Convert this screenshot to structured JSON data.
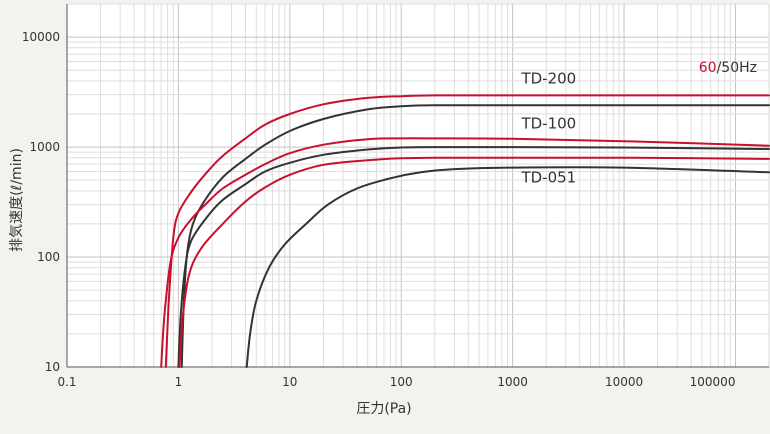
{
  "chart_data": {
    "type": "line",
    "xscale": "log",
    "yscale": "log",
    "xlim": [
      0.1,
      200000
    ],
    "ylim": [
      10,
      20000
    ],
    "grid": true,
    "xlabel": "圧力(Pa)",
    "ylabel": "排気速度(ℓ/min)",
    "xticks": [
      {
        "value": 0.1,
        "label": "0.1"
      },
      {
        "value": 1,
        "label": "1"
      },
      {
        "value": 10,
        "label": "10"
      },
      {
        "value": 100,
        "label": "100"
      },
      {
        "value": 1000,
        "label": "1000"
      },
      {
        "value": 10000,
        "label": "10000"
      },
      {
        "value": 100000,
        "label": "100000"
      }
    ],
    "yticks": [
      {
        "value": 10,
        "label": "10"
      },
      {
        "value": 100,
        "label": "100"
      },
      {
        "value": 1000,
        "label": "1000"
      },
      {
        "value": 10000,
        "label": "10000"
      }
    ],
    "legend": {
      "hz60": "60",
      "rest": "/50Hz",
      "hz60_color": "#c8102e",
      "rest_color": "#333333"
    },
    "colors": {
      "hz60": "#c8102e",
      "hz50": "#333333"
    },
    "annotations": [
      {
        "text": "TD-200",
        "x": 1200,
        "y": 3800
      },
      {
        "text": "TD-100",
        "x": 1200,
        "y": 1480
      },
      {
        "text": "TD-051",
        "x": 1200,
        "y": 475
      }
    ],
    "series": [
      {
        "model": "TD-200",
        "freq": "60Hz",
        "color": "#c8102e",
        "points": [
          [
            0.77,
            10
          ],
          [
            0.82,
            40
          ],
          [
            0.9,
            150
          ],
          [
            1.0,
            250
          ],
          [
            1.3,
            390
          ],
          [
            1.8,
            590
          ],
          [
            2.5,
            830
          ],
          [
            4,
            1200
          ],
          [
            6,
            1600
          ],
          [
            10,
            2000
          ],
          [
            20,
            2450
          ],
          [
            50,
            2800
          ],
          [
            100,
            2900
          ],
          [
            200,
            2950
          ],
          [
            1000,
            2950
          ],
          [
            10000,
            2950
          ],
          [
            200000,
            2950
          ]
        ]
      },
      {
        "model": "TD-200",
        "freq": "50Hz",
        "color": "#333333",
        "points": [
          [
            1.07,
            10
          ],
          [
            1.12,
            40
          ],
          [
            1.2,
            110
          ],
          [
            1.35,
            200
          ],
          [
            1.7,
            320
          ],
          [
            2.5,
            530
          ],
          [
            4,
            780
          ],
          [
            6,
            1050
          ],
          [
            10,
            1400
          ],
          [
            20,
            1800
          ],
          [
            50,
            2200
          ],
          [
            100,
            2350
          ],
          [
            200,
            2400
          ],
          [
            1000,
            2400
          ],
          [
            10000,
            2400
          ],
          [
            200000,
            2400
          ]
        ]
      },
      {
        "model": "TD-100",
        "freq": "60Hz",
        "color": "#c8102e",
        "points": [
          [
            0.7,
            10
          ],
          [
            0.75,
            30
          ],
          [
            0.85,
            90
          ],
          [
            1.0,
            150
          ],
          [
            1.3,
            220
          ],
          [
            1.8,
            310
          ],
          [
            2.5,
            420
          ],
          [
            4,
            560
          ],
          [
            6,
            700
          ],
          [
            10,
            880
          ],
          [
            20,
            1050
          ],
          [
            50,
            1180
          ],
          [
            100,
            1200
          ],
          [
            200,
            1200
          ],
          [
            1000,
            1190
          ],
          [
            10000,
            1130
          ],
          [
            200000,
            1030
          ]
        ]
      },
      {
        "model": "TD-100",
        "freq": "50Hz",
        "color": "#333333",
        "points": [
          [
            1.0,
            10
          ],
          [
            1.05,
            30
          ],
          [
            1.15,
            80
          ],
          [
            1.3,
            140
          ],
          [
            1.8,
            230
          ],
          [
            2.5,
            330
          ],
          [
            4,
            460
          ],
          [
            6,
            600
          ],
          [
            10,
            720
          ],
          [
            20,
            850
          ],
          [
            50,
            950
          ],
          [
            100,
            990
          ],
          [
            200,
            1000
          ],
          [
            1000,
            1000
          ],
          [
            10000,
            990
          ],
          [
            200000,
            960
          ]
        ]
      },
      {
        "model": "TD-051",
        "freq": "60Hz",
        "color": "#c8102e",
        "points": [
          [
            1.02,
            10
          ],
          [
            1.1,
            30
          ],
          [
            1.25,
            70
          ],
          [
            1.6,
            120
          ],
          [
            2.5,
            200
          ],
          [
            4,
            320
          ],
          [
            6,
            430
          ],
          [
            10,
            560
          ],
          [
            20,
            690
          ],
          [
            50,
            760
          ],
          [
            100,
            790
          ],
          [
            200,
            800
          ],
          [
            1000,
            800
          ],
          [
            10000,
            800
          ],
          [
            200000,
            780
          ]
        ]
      },
      {
        "model": "TD-051",
        "freq": "50Hz",
        "color": "#333333",
        "points": [
          [
            4.1,
            10
          ],
          [
            4.4,
            20
          ],
          [
            5,
            40
          ],
          [
            6.5,
            80
          ],
          [
            9,
            130
          ],
          [
            14,
            200
          ],
          [
            22,
            300
          ],
          [
            40,
            420
          ],
          [
            80,
            520
          ],
          [
            150,
            590
          ],
          [
            300,
            630
          ],
          [
            1000,
            650
          ],
          [
            10000,
            650
          ],
          [
            200000,
            590
          ]
        ]
      }
    ]
  }
}
